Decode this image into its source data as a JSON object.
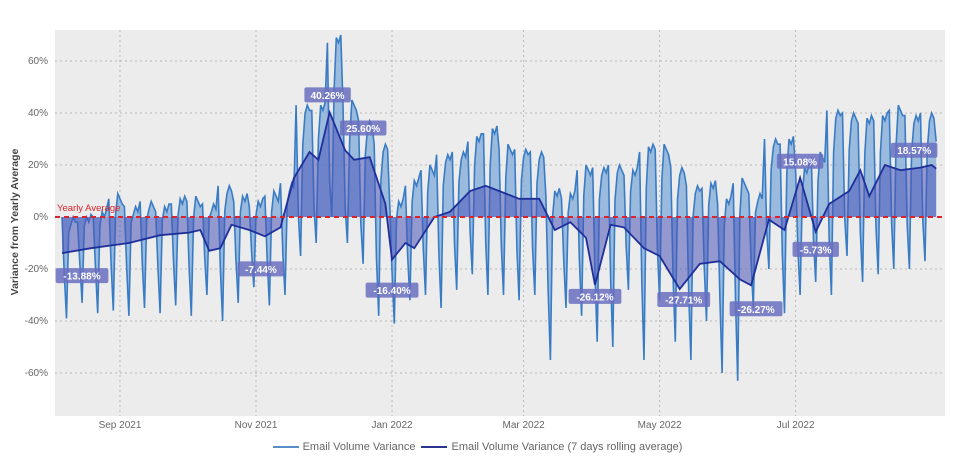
{
  "chart_data": {
    "type": "line",
    "title": "",
    "ylabel": "Variance from Yearly Average",
    "xlabel": "",
    "ylim": [
      -76,
      72
    ],
    "x_start_date": "2021-08-06",
    "x_days": 393,
    "x_unit": "days since start",
    "yticks": [
      {
        "value": 60,
        "label": "60%"
      },
      {
        "value": 40,
        "label": "40%"
      },
      {
        "value": 20,
        "label": "20%"
      },
      {
        "value": 0,
        "label": "0%"
      },
      {
        "value": -20,
        "label": "-20%"
      },
      {
        "value": -40,
        "label": "-40%"
      },
      {
        "value": -60,
        "label": "-60%"
      }
    ],
    "xticks": [
      {
        "day": 26,
        "label": "Sep 2021"
      },
      {
        "day": 87,
        "label": "Nov 2021"
      },
      {
        "day": 148,
        "label": "Jan 2022"
      },
      {
        "day": 207,
        "label": "Mar 2022"
      },
      {
        "day": 268,
        "label": "May 2022"
      },
      {
        "day": 329,
        "label": "Jul 2022"
      }
    ],
    "grid": true,
    "reference_line": {
      "value": 0,
      "label": "Yearly Average",
      "color": "#d9232d"
    },
    "legend_position": "bottom-center",
    "series": [
      {
        "name": "Email Volume Variance",
        "color": "#3a7cc4",
        "weekly_peak": [
          0,
          2,
          3,
          9,
          5,
          6,
          6,
          8,
          8,
          6,
          12,
          10,
          7,
          10,
          14,
          43,
          45,
          70,
          45,
          38,
          28,
          8,
          15,
          20,
          25,
          25,
          33,
          35,
          28,
          27,
          25,
          12,
          10,
          20,
          20,
          20,
          20,
          28,
          28,
          20,
          12,
          15,
          8,
          15,
          10,
          30,
          32,
          20,
          25,
          42,
          40,
          40,
          40,
          43,
          40,
          40,
          33
        ],
        "weekly_trough": [
          -39,
          -33,
          -37,
          -36,
          -38,
          -35,
          -37,
          -34,
          -38,
          -30,
          -40,
          -33,
          -27,
          -34,
          -30,
          -15,
          -10,
          0,
          -10,
          -18,
          -38,
          -41,
          -32,
          -30,
          -35,
          -28,
          -22,
          -30,
          -30,
          -32,
          -30,
          -55,
          -35,
          -38,
          -48,
          -50,
          -28,
          -55,
          -32,
          -48,
          -55,
          -40,
          -60,
          -63,
          -35,
          -20,
          -37,
          -30,
          -25,
          -30,
          -15,
          -25,
          -22,
          -20,
          -20,
          -17,
          -10
        ]
      },
      {
        "name": "Email Volume Variance (7 days rolling average)",
        "color": "#1f2f9a",
        "points": [
          [
            0,
            -13.88
          ],
          [
            13,
            -12
          ],
          [
            30,
            -10
          ],
          [
            44,
            -7
          ],
          [
            57,
            -6
          ],
          [
            62,
            -5
          ],
          [
            66,
            -13
          ],
          [
            71,
            -12
          ],
          [
            76,
            -3
          ],
          [
            84,
            -5
          ],
          [
            91,
            -7.44
          ],
          [
            98,
            -4
          ],
          [
            104,
            15
          ],
          [
            111,
            25
          ],
          [
            115,
            22
          ],
          [
            120,
            40.26
          ],
          [
            127,
            25.6
          ],
          [
            131,
            22
          ],
          [
            138,
            23
          ],
          [
            145,
            5
          ],
          [
            148,
            -16.4
          ],
          [
            154,
            -10
          ],
          [
            158,
            -12
          ],
          [
            167,
            0
          ],
          [
            174,
            2
          ],
          [
            183,
            10
          ],
          [
            190,
            12
          ],
          [
            196,
            10
          ],
          [
            205,
            7
          ],
          [
            214,
            7
          ],
          [
            221,
            -5
          ],
          [
            228,
            -2
          ],
          [
            235,
            -8
          ],
          [
            239,
            -26.12
          ],
          [
            246,
            -3
          ],
          [
            252,
            -4
          ],
          [
            261,
            -12
          ],
          [
            268,
            -15
          ],
          [
            277,
            -27.71
          ],
          [
            286,
            -18
          ],
          [
            295,
            -17
          ],
          [
            304,
            -24
          ],
          [
            309,
            -26.27
          ],
          [
            317,
            -1
          ],
          [
            324,
            -5
          ],
          [
            331,
            15.08
          ],
          [
            338,
            -5.73
          ],
          [
            344,
            5
          ],
          [
            353,
            10
          ],
          [
            358,
            18
          ],
          [
            362,
            8
          ],
          [
            369,
            20
          ],
          [
            376,
            18
          ],
          [
            385,
            19
          ],
          [
            390,
            20
          ],
          [
            392,
            18.57
          ]
        ]
      }
    ],
    "annotations": [
      {
        "day": 0,
        "value": -13.88,
        "label": "-13.88%"
      },
      {
        "day": 91,
        "value": -7.44,
        "label": "-7.44%"
      },
      {
        "day": 120,
        "value": 40.26,
        "label": "40.26%"
      },
      {
        "day": 127,
        "value": 25.6,
        "label": "25.60%"
      },
      {
        "day": 148,
        "value": -16.4,
        "label": "-16.40%"
      },
      {
        "day": 239,
        "value": -26.12,
        "label": "-26.12%"
      },
      {
        "day": 277,
        "value": -27.71,
        "label": "-27.71%"
      },
      {
        "day": 309,
        "value": -26.27,
        "label": "-26.27%"
      },
      {
        "day": 331,
        "value": 15.08,
        "label": "15.08%"
      },
      {
        "day": 338,
        "value": -5.73,
        "label": "-5.73%"
      },
      {
        "day": 392,
        "value": 18.57,
        "label": "18.57%"
      }
    ]
  }
}
